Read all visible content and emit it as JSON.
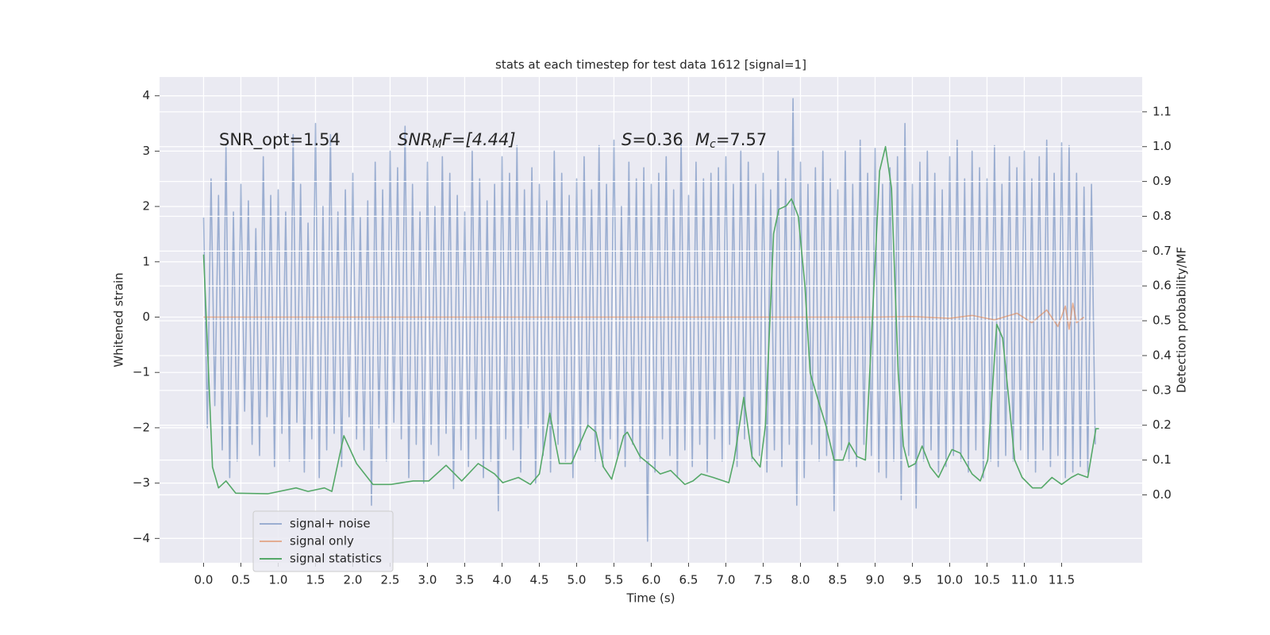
{
  "chart_data": {
    "type": "line",
    "title": "stats at each timestep for test data 1612 [signal=1]",
    "xlabel": "Time (s)",
    "ylabel": "Whitened strain",
    "y2label": "Detection probability/MF",
    "annotations": [
      [
        "SNR_opt=1.54"
      ],
      [
        "SNR",
        "M",
        "F=[4.44]"
      ],
      [
        "S",
        "=0.36"
      ],
      [
        "M",
        "c",
        "=7.57"
      ]
    ],
    "grid": true,
    "legend": "lower left",
    "background": "#eaeaf2",
    "xlim": [
      -0.59,
      12.58
    ],
    "ylim": [
      -4.44,
      4.34
    ],
    "y2lim": [
      -0.195,
      1.2
    ],
    "xticks": [
      {
        "value": 0,
        "label": "0.0"
      },
      {
        "value": 0.5,
        "label": "0.5"
      },
      {
        "value": 1,
        "label": "1.0"
      },
      {
        "value": 1.5,
        "label": "1.5"
      },
      {
        "value": 2,
        "label": "2.0"
      },
      {
        "value": 2.5,
        "label": "2.5"
      },
      {
        "value": 3,
        "label": "3.0"
      },
      {
        "value": 3.5,
        "label": "3.5"
      },
      {
        "value": 4,
        "label": "4.0"
      },
      {
        "value": 4.5,
        "label": "4.5"
      },
      {
        "value": 5,
        "label": "5.0"
      },
      {
        "value": 5.5,
        "label": "5.5"
      },
      {
        "value": 6,
        "label": "6.0"
      },
      {
        "value": 6.5,
        "label": "6.5"
      },
      {
        "value": 7,
        "label": "7.0"
      },
      {
        "value": 7.5,
        "label": "7.5"
      },
      {
        "value": 8,
        "label": "8.0"
      },
      {
        "value": 8.5,
        "label": "8.5"
      },
      {
        "value": 9,
        "label": "9.0"
      },
      {
        "value": 9.5,
        "label": "9.5"
      },
      {
        "value": 10,
        "label": "10.0"
      },
      {
        "value": 10.5,
        "label": "10.5"
      },
      {
        "value": 11,
        "label": "11.0"
      },
      {
        "value": 11.5,
        "label": "11.5"
      }
    ],
    "yticks": [
      {
        "value": -4,
        "label": "−4"
      },
      {
        "value": -3,
        "label": "−3"
      },
      {
        "value": -2,
        "label": "−2"
      },
      {
        "value": -1,
        "label": "−1"
      },
      0,
      1,
      2,
      3,
      4
    ],
    "y2ticks": [
      {
        "value": 0,
        "label": "0.0"
      },
      {
        "value": 0.1,
        "label": "0.1"
      },
      {
        "value": 0.2,
        "label": "0.2"
      },
      {
        "value": 0.3,
        "label": "0.3"
      },
      {
        "value": 0.4,
        "label": "0.4"
      },
      {
        "value": 0.5,
        "label": "0.5"
      },
      {
        "value": 0.6,
        "label": "0.6"
      },
      {
        "value": 0.7,
        "label": "0.7"
      },
      {
        "value": 0.8,
        "label": "0.8"
      },
      {
        "value": 0.9,
        "label": "0.9"
      },
      {
        "value": 1,
        "label": "1.0"
      },
      {
        "value": 1.1,
        "label": "1.1"
      }
    ],
    "series": [
      {
        "name": "signal+ noise",
        "color": "#4c72b0",
        "alpha": 0.5,
        "x": [
          0,
          0.05,
          0.1,
          0.15,
          0.2,
          0.25,
          0.3,
          0.35,
          0.4,
          0.45,
          0.5,
          0.55,
          0.6,
          0.65,
          0.7,
          0.75,
          0.8,
          0.85,
          0.9,
          0.95,
          1,
          1.05,
          1.1,
          1.15,
          1.2,
          1.25,
          1.3,
          1.35,
          1.4,
          1.45,
          1.5,
          1.55,
          1.6,
          1.65,
          1.7,
          1.75,
          1.8,
          1.85,
          1.9,
          1.95,
          2,
          2.05,
          2.1,
          2.15,
          2.2,
          2.25,
          2.3,
          2.35,
          2.4,
          2.45,
          2.5,
          2.55,
          2.6,
          2.65,
          2.7,
          2.75,
          2.8,
          2.85,
          2.9,
          2.95,
          3,
          3.05,
          3.1,
          3.15,
          3.2,
          3.25,
          3.3,
          3.35,
          3.4,
          3.45,
          3.5,
          3.55,
          3.6,
          3.65,
          3.7,
          3.75,
          3.8,
          3.85,
          3.9,
          3.95,
          4,
          4.05,
          4.1,
          4.15,
          4.2,
          4.25,
          4.3,
          4.35,
          4.4,
          4.45,
          4.5,
          4.55,
          4.6,
          4.65,
          4.7,
          4.75,
          4.8,
          4.85,
          4.9,
          4.95,
          5,
          5.05,
          5.1,
          5.15,
          5.2,
          5.25,
          5.3,
          5.35,
          5.4,
          5.45,
          5.5,
          5.55,
          5.6,
          5.65,
          5.7,
          5.75,
          5.8,
          5.85,
          5.9,
          5.95,
          6,
          6.05,
          6.1,
          6.15,
          6.2,
          6.25,
          6.3,
          6.35,
          6.4,
          6.45,
          6.5,
          6.55,
          6.6,
          6.65,
          6.7,
          6.75,
          6.8,
          6.85,
          6.9,
          6.95,
          7,
          7.05,
          7.1,
          7.15,
          7.2,
          7.25,
          7.3,
          7.35,
          7.4,
          7.45,
          7.5,
          7.55,
          7.6,
          7.65,
          7.7,
          7.75,
          7.8,
          7.85,
          7.9,
          7.95,
          8,
          8.05,
          8.1,
          8.15,
          8.2,
          8.25,
          8.3,
          8.35,
          8.4,
          8.45,
          8.5,
          8.55,
          8.6,
          8.65,
          8.7,
          8.75,
          8.8,
          8.85,
          8.9,
          8.95,
          9,
          9.05,
          9.1,
          9.15,
          9.2,
          9.25,
          9.3,
          9.35,
          9.4,
          9.45,
          9.5,
          9.55,
          9.6,
          9.65,
          9.7,
          9.75,
          9.8,
          9.85,
          9.9,
          9.95,
          10,
          10.05,
          10.1,
          10.15,
          10.2,
          10.25,
          10.3,
          10.35,
          10.4,
          10.45,
          10.5,
          10.55,
          10.6,
          10.65,
          10.7,
          10.75,
          10.8,
          10.85,
          10.9,
          10.95,
          11,
          11.05,
          11.1,
          11.15,
          11.2,
          11.25,
          11.3,
          11.35,
          11.4,
          11.45,
          11.5,
          11.55,
          11.6,
          11.65,
          11.7,
          11.75,
          11.8,
          11.85,
          11.9,
          11.95
        ],
        "values": [
          1.8,
          -2.0,
          2.5,
          -1.6,
          2.2,
          -2.4,
          3.1,
          -2.9,
          1.9,
          -2.6,
          2.4,
          -1.7,
          2.1,
          -2.3,
          1.6,
          -2.5,
          2.9,
          -1.8,
          2.2,
          -2.7,
          2.3,
          -2.1,
          1.9,
          -2.6,
          3.3,
          -1.9,
          2.4,
          -2.8,
          1.7,
          -2.2,
          3.5,
          -2.9,
          2.0,
          -2.4,
          3.3,
          -2.1,
          1.9,
          -2.7,
          2.3,
          -1.8,
          2.6,
          -2.2,
          1.8,
          -2.4,
          2.1,
          -3.4,
          2.8,
          -2.0,
          2.3,
          -2.6,
          3.0,
          -1.9,
          2.7,
          -2.2,
          3.45,
          -2.9,
          2.4,
          -2.3,
          1.9,
          -3.0,
          2.8,
          -2.3,
          2.0,
          -2.5,
          2.9,
          -2.1,
          2.6,
          -3.1,
          2.2,
          -2.4,
          1.9,
          -2.7,
          3.0,
          -2.2,
          2.5,
          -2.9,
          2.1,
          -2.6,
          2.4,
          -3.5,
          2.9,
          -2.2,
          2.6,
          -2.4,
          3.1,
          -2.8,
          2.3,
          -2.0,
          2.7,
          -3.0,
          2.4,
          -2.5,
          2.1,
          -2.8,
          3.0,
          -2.3,
          2.6,
          -2.6,
          2.2,
          -2.9,
          2.5,
          -2.4,
          2.9,
          -2.0,
          2.3,
          -2.6,
          3.1,
          -2.7,
          2.4,
          -2.2,
          3.2,
          -2.5,
          2.0,
          -2.7,
          2.8,
          -2.3,
          2.5,
          -2.6,
          2.7,
          -4.05,
          2.4,
          -2.8,
          2.6,
          -2.2,
          2.9,
          -2.5,
          2.3,
          -2.9,
          3.2,
          -2.4,
          2.2,
          -2.7,
          2.8,
          -2.3,
          2.5,
          -2.8,
          2.6,
          -2.2,
          2.7,
          -2.6,
          2.9,
          -2.3,
          2.4,
          -2.7,
          3.0,
          -2.2,
          2.8,
          -2.6,
          2.4,
          -2.5,
          2.6,
          -2.8,
          2.3,
          -2.4,
          3.0,
          -2.7,
          2.5,
          -2.3,
          3.95,
          -3.4,
          2.8,
          -2.9,
          2.4,
          -2.3,
          2.7,
          -2.6,
          3.0,
          -2.5,
          2.5,
          -3.5,
          2.3,
          -2.4,
          3.0,
          -2.6,
          2.4,
          -2.7,
          3.2,
          -2.3,
          2.6,
          -2.5,
          3.05,
          -2.8,
          2.4,
          -2.9,
          2.7,
          -2.6,
          2.9,
          -3.3,
          3.5,
          -2.5,
          2.4,
          -3.45,
          2.8,
          -2.6,
          3.0,
          -2.4,
          2.6,
          -2.8,
          2.3,
          -2.7,
          2.9,
          -2.5,
          3.2,
          -2.6,
          2.5,
          -2.8,
          3.0,
          -2.4,
          2.7,
          -2.9,
          2.5,
          -2.6,
          3.1,
          -2.7,
          2.4,
          -2.5,
          2.9,
          -2.6,
          2.7,
          -2.4,
          3.0,
          -2.6,
          2.5,
          -2.8,
          2.9,
          -2.4,
          3.2,
          -2.7,
          2.6,
          -2.5,
          3.15,
          -2.9,
          3.1,
          -2.8,
          2.6,
          -2.7,
          2.35,
          -2.8,
          2.4,
          -2.3
        ]
      },
      {
        "name": "signal only",
        "color": "#dd8452",
        "alpha": 0.6,
        "x": [
          0,
          1,
          2,
          3,
          4,
          5,
          6,
          7,
          8,
          9,
          9.5,
          10,
          10.3,
          10.6,
          10.9,
          11.1,
          11.3,
          11.45,
          11.55,
          11.6,
          11.65,
          11.7,
          11.8
        ],
        "values": [
          0,
          0,
          0,
          0,
          0,
          0,
          0,
          0,
          0,
          0,
          0.01,
          -0.02,
          0.03,
          -0.05,
          0.07,
          -0.1,
          0.13,
          -0.17,
          0.2,
          -0.22,
          0.25,
          -0.1,
          0
        ]
      },
      {
        "name": "signal statistics",
        "color": "#55a868",
        "alpha": 1,
        "axis": "y2",
        "x": [
          0,
          0.12,
          0.2,
          0.3,
          0.43,
          0.86,
          1.24,
          1.4,
          1.62,
          1.72,
          1.88,
          2.05,
          2.27,
          2.51,
          2.81,
          3.02,
          3.25,
          3.46,
          3.68,
          3.9,
          4.01,
          4.22,
          4.38,
          4.5,
          4.64,
          4.77,
          4.93,
          5.15,
          5.26,
          5.36,
          5.47,
          5.63,
          5.68,
          5.85,
          6.02,
          6.12,
          6.26,
          6.45,
          6.56,
          6.67,
          6.83,
          7.04,
          7.11,
          7.24,
          7.35,
          7.46,
          7.53,
          7.64,
          7.71,
          7.81,
          7.88,
          7.97,
          8.06,
          8.13,
          8.24,
          8.34,
          8.45,
          8.57,
          8.65,
          8.76,
          8.87,
          8.94,
          9.06,
          9.14,
          9.22,
          9.31,
          9.38,
          9.45,
          9.54,
          9.63,
          9.74,
          9.85,
          10.03,
          10.14,
          10.3,
          10.41,
          10.51,
          10.63,
          10.71,
          10.78,
          10.87,
          10.97,
          11.11,
          11.23,
          11.37,
          11.5,
          11.63,
          11.72,
          11.85,
          11.96,
          12.0
        ],
        "values": [
          0.69,
          0.08,
          0.02,
          0.04,
          0.005,
          0.003,
          0.02,
          0.01,
          0.02,
          0.01,
          0.17,
          0.09,
          0.03,
          0.03,
          0.04,
          0.04,
          0.085,
          0.04,
          0.09,
          0.06,
          0.035,
          0.05,
          0.03,
          0.06,
          0.235,
          0.09,
          0.09,
          0.2,
          0.18,
          0.08,
          0.045,
          0.17,
          0.18,
          0.11,
          0.08,
          0.06,
          0.07,
          0.03,
          0.04,
          0.06,
          0.05,
          0.035,
          0.1,
          0.28,
          0.11,
          0.08,
          0.2,
          0.75,
          0.82,
          0.83,
          0.85,
          0.8,
          0.6,
          0.35,
          0.27,
          0.2,
          0.1,
          0.1,
          0.15,
          0.11,
          0.1,
          0.4,
          0.93,
          1.0,
          0.88,
          0.35,
          0.14,
          0.08,
          0.09,
          0.14,
          0.08,
          0.05,
          0.13,
          0.12,
          0.06,
          0.04,
          0.1,
          0.49,
          0.45,
          0.3,
          0.1,
          0.05,
          0.02,
          0.02,
          0.05,
          0.03,
          0.05,
          0.06,
          0.05,
          0.19,
          0.19
        ]
      }
    ]
  }
}
